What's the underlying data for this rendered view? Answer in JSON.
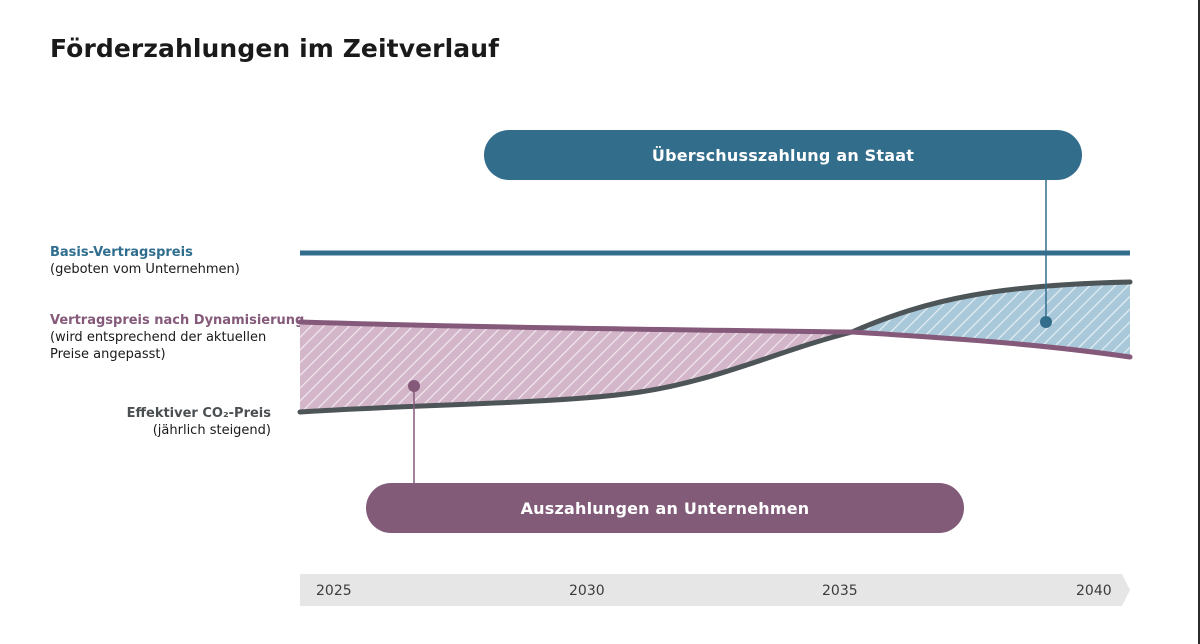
{
  "title": "Förderzahlungen im Zeitverlauf",
  "labels": {
    "basis": {
      "name": "Basis-Vertragspreis",
      "note": "(geboten vom Unternehmen)"
    },
    "dynamisierung": {
      "name": "Vertragspreis nach Dynamisierung",
      "note": "(wird entsprechend der aktuellen\nPreise angepasst)"
    },
    "co2": {
      "name": "Effektiver CO₂-Preis",
      "note": "(jährlich steigend)"
    }
  },
  "callouts": {
    "surplus": "Überschusszahlung an Staat",
    "payouts": "Auszahlungen an Unternehmen"
  },
  "timeline": {
    "ticks": [
      "2025",
      "2030",
      "2035",
      "2040"
    ]
  },
  "colors": {
    "basis": "#336d8c",
    "dynamisierung": "#84597a",
    "co2": "#4d5558",
    "surplus_fill": "#a9c9da",
    "payout_fill": "#d3b6c9",
    "timeline_bg": "#e6e6e6"
  }
}
